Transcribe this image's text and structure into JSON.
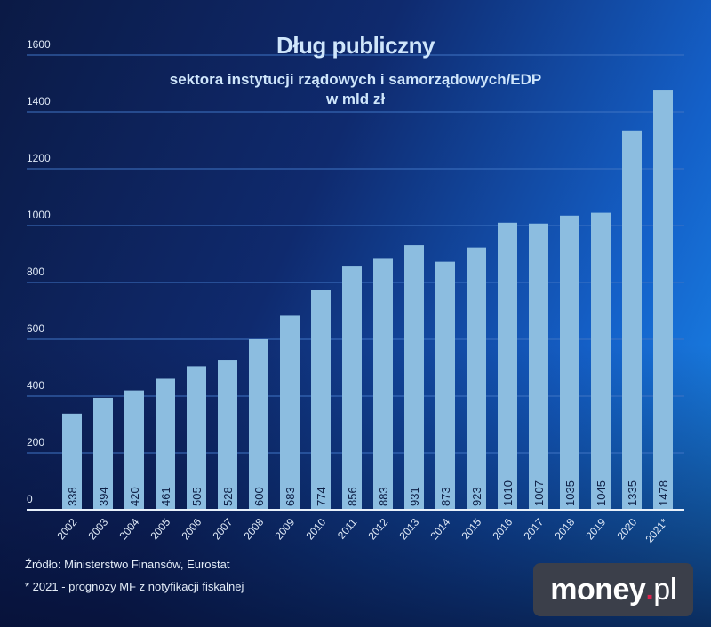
{
  "chart_data": {
    "type": "bar",
    "title": "Dług publiczny",
    "subtitle": "sektora instytucji rządowych i samorządowych/EDP",
    "unit_label": "w mld zł",
    "categories": [
      "2002",
      "2003",
      "2004",
      "2005",
      "2006",
      "2007",
      "2008",
      "2009",
      "2010",
      "2011",
      "2012",
      "2013",
      "2014",
      "2015",
      "2016",
      "2017",
      "2018",
      "2019",
      "2020",
      "2021*"
    ],
    "values": [
      338,
      394,
      420,
      461,
      505,
      528,
      600,
      683,
      774,
      856,
      883,
      931,
      873,
      923,
      1010,
      1007,
      1035,
      1045,
      1335,
      1478
    ],
    "yticks": [
      0,
      200,
      400,
      600,
      800,
      1000,
      1200,
      1400,
      1600
    ],
    "ylim": [
      0,
      1600
    ],
    "grid": true,
    "bar_color": "#8cbde0",
    "label_color": "#0d1f45"
  },
  "footer": {
    "source": "Źródło: Ministerstwo Finansów, Eurostat",
    "note": "* 2021 - prognozy MF z notyfikacji fiskalnej"
  },
  "logo": {
    "main": "money",
    "dot": ".",
    "suffix": "pl"
  }
}
